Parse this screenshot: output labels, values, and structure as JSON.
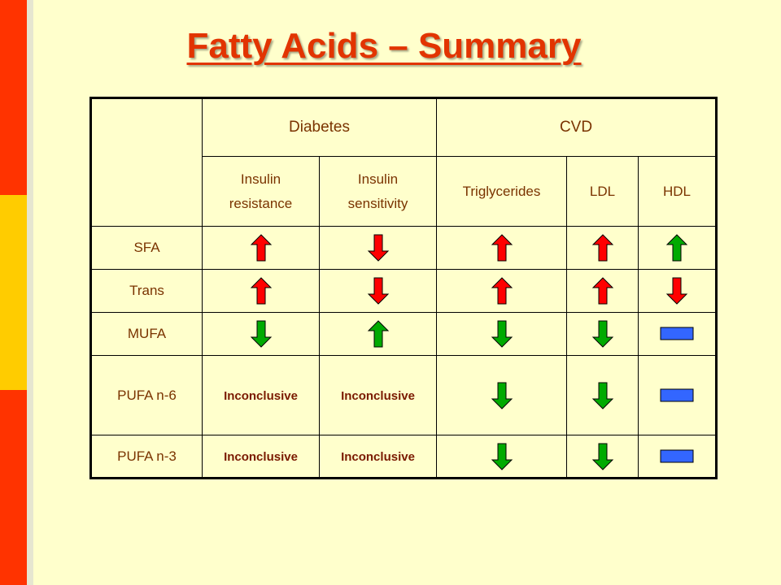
{
  "slide": {
    "title": "Fatty Acids – Summary"
  },
  "colors": {
    "increase": "#FF0000",
    "decrease": "#00AA00",
    "neutral": "#3366FF",
    "text": "#7A3300"
  },
  "table": {
    "groups": {
      "diabetes": "Diabetes",
      "cvd": "CVD"
    },
    "subheaders": {
      "insulin_resistance": "Insulin resistance",
      "insulin_sensitivity": "Insulin sensitivity",
      "triglycerides": "Triglycerides",
      "ldl": "LDL",
      "hdl": "HDL"
    },
    "rows": [
      {
        "label": "SFA",
        "cells": [
          {
            "kind": "icon",
            "icon": "red-up-arrow"
          },
          {
            "kind": "icon",
            "icon": "red-down-arrow"
          },
          {
            "kind": "icon",
            "icon": "red-up-arrow"
          },
          {
            "kind": "icon",
            "icon": "red-up-arrow"
          },
          {
            "kind": "icon",
            "icon": "green-up-arrow"
          }
        ]
      },
      {
        "label": "Trans",
        "cells": [
          {
            "kind": "icon",
            "icon": "red-up-arrow"
          },
          {
            "kind": "icon",
            "icon": "red-down-arrow"
          },
          {
            "kind": "icon",
            "icon": "red-up-arrow"
          },
          {
            "kind": "icon",
            "icon": "red-up-arrow"
          },
          {
            "kind": "icon",
            "icon": "red-down-arrow"
          }
        ]
      },
      {
        "label": "MUFA",
        "cells": [
          {
            "kind": "icon",
            "icon": "green-down-arrow"
          },
          {
            "kind": "icon",
            "icon": "green-up-arrow"
          },
          {
            "kind": "icon",
            "icon": "green-down-arrow"
          },
          {
            "kind": "icon",
            "icon": "green-down-arrow"
          },
          {
            "kind": "icon",
            "icon": "blue-bar"
          }
        ]
      },
      {
        "label": "PUFA n-6",
        "cells": [
          {
            "kind": "text",
            "text": "Inconclusive"
          },
          {
            "kind": "text",
            "text": "Inconclusive"
          },
          {
            "kind": "icon",
            "icon": "green-down-arrow"
          },
          {
            "kind": "icon",
            "icon": "green-down-arrow"
          },
          {
            "kind": "icon",
            "icon": "blue-bar"
          }
        ]
      },
      {
        "label": "PUFA n-3",
        "cells": [
          {
            "kind": "text",
            "text": "Inconclusive"
          },
          {
            "kind": "text",
            "text": "Inconclusive"
          },
          {
            "kind": "icon",
            "icon": "green-down-arrow"
          },
          {
            "kind": "icon",
            "icon": "green-down-arrow"
          },
          {
            "kind": "icon",
            "icon": "blue-bar"
          }
        ]
      }
    ]
  }
}
